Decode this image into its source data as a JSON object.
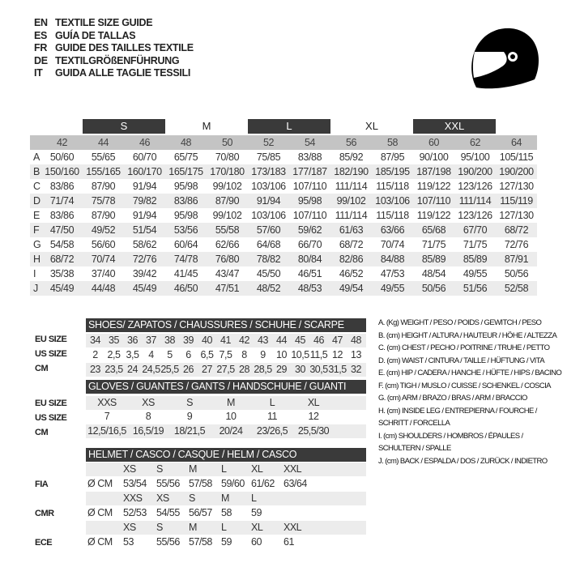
{
  "titles": [
    {
      "lang": "EN",
      "text": "TEXTILE SIZE GUIDE"
    },
    {
      "lang": "ES",
      "text": "GUÍA DE TALLAS"
    },
    {
      "lang": "FR",
      "text": "GUIDE DES TAILLES TEXTILE"
    },
    {
      "lang": "DE",
      "text": "TEXTILGRÖßENFÜHRUNG"
    },
    {
      "lang": "IT",
      "text": "GUIDA ALLE TAGLIE TESSILI"
    }
  ],
  "icon": "helmet-icon",
  "colors": {
    "dark_bar": "#3a3a3a",
    "header_gray": "#c4c4c4",
    "stripe": "#ececec"
  },
  "textile": {
    "size_groups": [
      {
        "label": "S",
        "dark": true
      },
      {
        "label": "M",
        "dark": false
      },
      {
        "label": "L",
        "dark": true
      },
      {
        "label": "XL",
        "dark": false
      },
      {
        "label": "XXL",
        "dark": true
      }
    ],
    "columns": [
      "42",
      "44",
      "46",
      "48",
      "50",
      "52",
      "54",
      "56",
      "58",
      "60",
      "62",
      "64"
    ],
    "rows": [
      {
        "letter": "A",
        "values": [
          "50/60",
          "55/65",
          "60/70",
          "65/75",
          "70/80",
          "75/85",
          "83/88",
          "85/92",
          "87/95",
          "90/100",
          "95/100",
          "105/115"
        ]
      },
      {
        "letter": "B",
        "values": [
          "150/160",
          "155/165",
          "160/170",
          "165/175",
          "170/180",
          "173/183",
          "177/187",
          "182/190",
          "185/195",
          "187/198",
          "190/200",
          "190/200"
        ]
      },
      {
        "letter": "C",
        "values": [
          "83/86",
          "87/90",
          "91/94",
          "95/98",
          "99/102",
          "103/106",
          "107/110",
          "111/114",
          "115/118",
          "119/122",
          "123/126",
          "127/130"
        ]
      },
      {
        "letter": "D",
        "values": [
          "71/74",
          "75/78",
          "79/82",
          "83/86",
          "87/90",
          "91/94",
          "95/98",
          "99/102",
          "103/106",
          "107/110",
          "111/114",
          "115/119"
        ]
      },
      {
        "letter": "E",
        "values": [
          "83/86",
          "87/90",
          "91/94",
          "95/98",
          "99/102",
          "103/106",
          "107/110",
          "111/114",
          "115/118",
          "119/122",
          "123/126",
          "127/130"
        ]
      },
      {
        "letter": "F",
        "values": [
          "47/50",
          "49/52",
          "51/54",
          "53/56",
          "55/58",
          "57/60",
          "59/62",
          "61/63",
          "63/66",
          "65/68",
          "67/70",
          "68/72"
        ]
      },
      {
        "letter": "G",
        "values": [
          "54/58",
          "56/60",
          "58/62",
          "60/64",
          "62/66",
          "64/68",
          "66/70",
          "68/72",
          "70/74",
          "71/75",
          "71/75",
          "72/76"
        ]
      },
      {
        "letter": "H",
        "values": [
          "68/72",
          "70/74",
          "72/76",
          "74/78",
          "76/80",
          "78/82",
          "80/84",
          "82/86",
          "84/88",
          "85/89",
          "85/89",
          "87/91"
        ]
      },
      {
        "letter": "I",
        "values": [
          "35/38",
          "37/40",
          "39/42",
          "41/45",
          "43/47",
          "45/50",
          "46/51",
          "46/52",
          "47/53",
          "48/54",
          "49/55",
          "50/56"
        ]
      },
      {
        "letter": "J",
        "values": [
          "45/49",
          "44/48",
          "45/49",
          "46/50",
          "47/51",
          "48/52",
          "48/53",
          "49/54",
          "49/55",
          "50/56",
          "51/56",
          "52/58"
        ]
      }
    ]
  },
  "shoes": {
    "title": "SHOES/ ZAPATOS / CHAUSSURES / SCHUHE / SCARPE",
    "rows": [
      {
        "label": "EU SIZE",
        "values": [
          "34",
          "35",
          "36",
          "37",
          "38",
          "39",
          "40",
          "41",
          "42",
          "43",
          "44",
          "45",
          "46",
          "47",
          "48"
        ]
      },
      {
        "label": "US SIZE",
        "values": [
          "2",
          "2,5",
          "3,5",
          "4",
          "5",
          "6",
          "6,5",
          "7,5",
          "8",
          "9",
          "10",
          "10,5",
          "11,5",
          "12",
          "13"
        ]
      },
      {
        "label": "CM",
        "values": [
          "23",
          "23,5",
          "24",
          "24,5",
          "25,5",
          "26",
          "27",
          "27,5",
          "28",
          "28,5",
          "29",
          "30",
          "30,5",
          "31,5",
          "32"
        ]
      }
    ]
  },
  "gloves": {
    "title": "GLOVES / GUANTES / GANTS / HANDSCHUHE / GUANTI",
    "rows": [
      {
        "label": "EU SIZE",
        "values": [
          "XXS",
          "XS",
          "S",
          "M",
          "L",
          "XL"
        ]
      },
      {
        "label": "US SIZE",
        "values": [
          "7",
          "8",
          "9",
          "10",
          "11",
          "12"
        ]
      },
      {
        "label": "CM",
        "values": [
          "12,5/16,5",
          "16,5/19",
          "18/21,5",
          "20/24",
          "23/26,5",
          "25,5/30"
        ]
      }
    ]
  },
  "helmet": {
    "title": "HELMET / CASCO / CASQUE / HELM / CASCO",
    "groups": [
      {
        "label": "FIA",
        "unit": "Ø CM",
        "sizes": [
          "XS",
          "S",
          "M",
          "L",
          "XL",
          "XXL"
        ],
        "values": [
          "53/54",
          "55/56",
          "57/58",
          "59/60",
          "61/62",
          "63/64"
        ]
      },
      {
        "label": "CMR",
        "unit": "Ø CM",
        "sizes": [
          "XXS",
          "XS",
          "S",
          "M",
          "L"
        ],
        "values": [
          "52/53",
          "54/55",
          "56/57",
          "58",
          "59"
        ]
      },
      {
        "label": "ECE",
        "unit": "Ø CM",
        "sizes": [
          "XS",
          "S",
          "M",
          "L",
          "XL",
          "XXL"
        ],
        "values": [
          "53",
          "55/56",
          "57/58",
          "59",
          "60",
          "61"
        ]
      }
    ]
  },
  "legend": [
    "A. (Kg) WEIGHT / PESO / POIDS / GEWITCH / PESO",
    "B. (cm) HEIGHT / ALTURA / HAUTEUR / HÖHE / ALTEZZA",
    "C. (cm) CHEST / PECHO / POITRINE / TRUHE / PETTO",
    "D. (cm) WAIST / CINTURA / TAILLE / HÜFTUNG / VITA",
    "E. (cm) HIP / CADERA / HANCHE / HÜFTE / HIPS /  BACINO",
    "F.  (cm) TIGH / MUSLO / CUISSE / SCHENKEL / COSCIA",
    "G. (cm) ARM  / BRAZO / BRAS / ARM / BRACCIO",
    "H. (cm) INSIDE LEG / ENTREPIERNA / FOURCHE /",
    "SCHRITT / FORCELLA",
    "I.  (cm) SHOULDERS / HOMBROS / ÉPAULES /",
    "SCHULTERN / SPALLE",
    "J. (cm) BACK / ESPALDA / DOS / ZURÜCK / INDIETRO"
  ]
}
